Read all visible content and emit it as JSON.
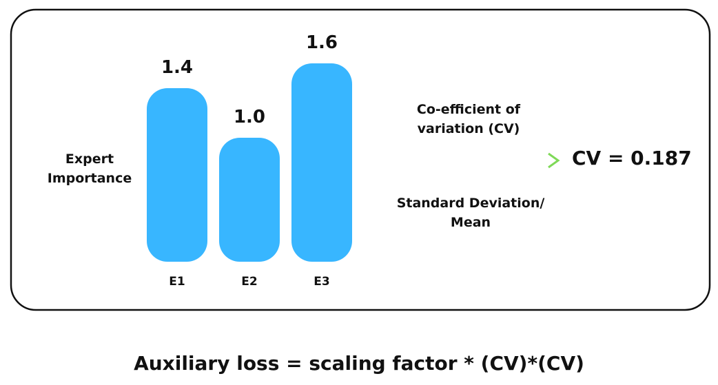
{
  "chart_data": {
    "type": "bar",
    "y_label": "Expert Importance",
    "categories": [
      "E1",
      "E2",
      "E3"
    ],
    "values": [
      1.4,
      1.0,
      1.6
    ],
    "value_labels": [
      "1.4",
      "1.0",
      "1.6"
    ],
    "color": "#38b6ff"
  },
  "arrow": {
    "top_label": "Co-efficient of variation (CV)",
    "bottom_label": "Standard Deviation/ Mean"
  },
  "result": "CV = 0.187",
  "formula": "Auxiliary loss = scaling factor * (CV)*(CV)"
}
